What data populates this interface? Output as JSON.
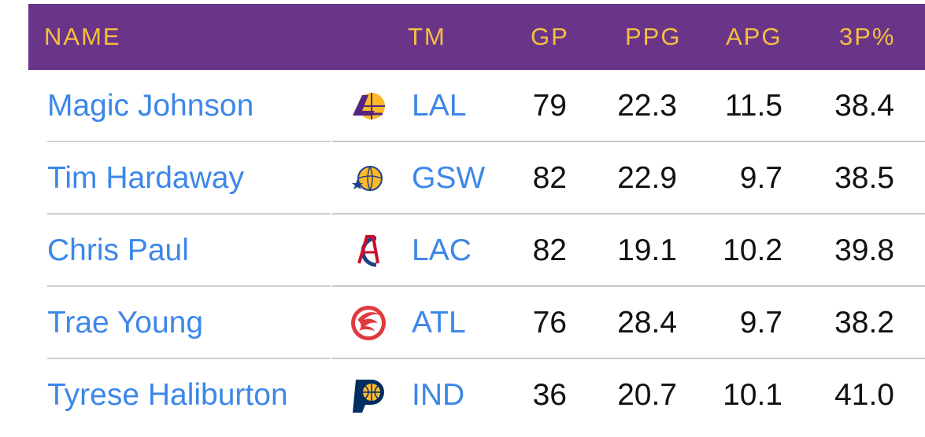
{
  "header": {
    "name": "NAME",
    "tm": "TM",
    "gp": "GP",
    "ppg": "PPG",
    "apg": "APG",
    "p3": "3P%"
  },
  "colors": {
    "header_bg": "#6a3589",
    "header_text": "#f6bf3e",
    "link": "#3d87e8",
    "text": "#111111"
  },
  "rows": [
    {
      "name": "Magic Johnson",
      "logo": "lakers-logo-icon",
      "tm": "LAL",
      "gp": "79",
      "ppg": "22.3",
      "apg": "11.5",
      "p3": "38.4"
    },
    {
      "name": "Tim Hardaway",
      "logo": "warriors-logo-icon",
      "tm": "GSW",
      "gp": "82",
      "ppg": "22.9",
      "apg": "9.7",
      "p3": "38.5"
    },
    {
      "name": "Chris Paul",
      "logo": "clippers-logo-icon",
      "tm": "LAC",
      "gp": "82",
      "ppg": "19.1",
      "apg": "10.2",
      "p3": "39.8"
    },
    {
      "name": "Trae Young",
      "logo": "hawks-logo-icon",
      "tm": "ATL",
      "gp": "76",
      "ppg": "28.4",
      "apg": "9.7",
      "p3": "38.2"
    },
    {
      "name": "Tyrese Haliburton",
      "logo": "pacers-logo-icon",
      "tm": "IND",
      "gp": "36",
      "ppg": "20.7",
      "apg": "10.1",
      "p3": "41.0"
    }
  ]
}
